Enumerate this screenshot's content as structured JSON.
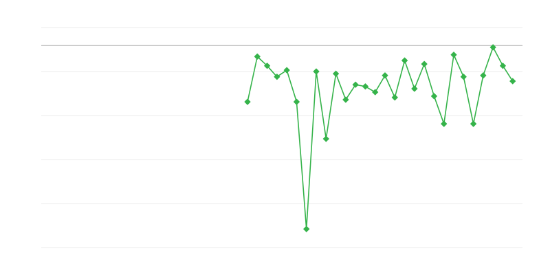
{
  "chart_data": {
    "type": "line",
    "title": "",
    "xlabel": "",
    "ylabel": "",
    "xlim": [
      0,
      49
    ],
    "ylim": [
      0,
      5
    ],
    "grid": true,
    "gridlines_y": [
      0,
      1,
      2,
      3,
      4,
      5
    ],
    "reference_line_y": 4.59,
    "legend": "none",
    "colors": {
      "series": "#35b34a",
      "grid": "#ebebeb",
      "reference": "#aaaaaa"
    },
    "series": [
      {
        "x": [
          21,
          22,
          23,
          24,
          25,
          26,
          27,
          28,
          29,
          30,
          31,
          32,
          33,
          34,
          35,
          36,
          37,
          38,
          39,
          40,
          41,
          42,
          43,
          44,
          45,
          46,
          47,
          48
        ],
        "y": [
          3.31,
          4.34,
          4.13,
          3.88,
          4.03,
          3.31,
          0.42,
          4.0,
          2.47,
          3.95,
          3.36,
          3.7,
          3.66,
          3.53,
          3.91,
          3.41,
          4.25,
          3.61,
          4.17,
          3.44,
          2.81,
          4.38,
          3.88,
          2.81,
          3.91,
          4.55,
          4.13,
          3.78
        ],
        "marker": "diamond"
      }
    ]
  }
}
